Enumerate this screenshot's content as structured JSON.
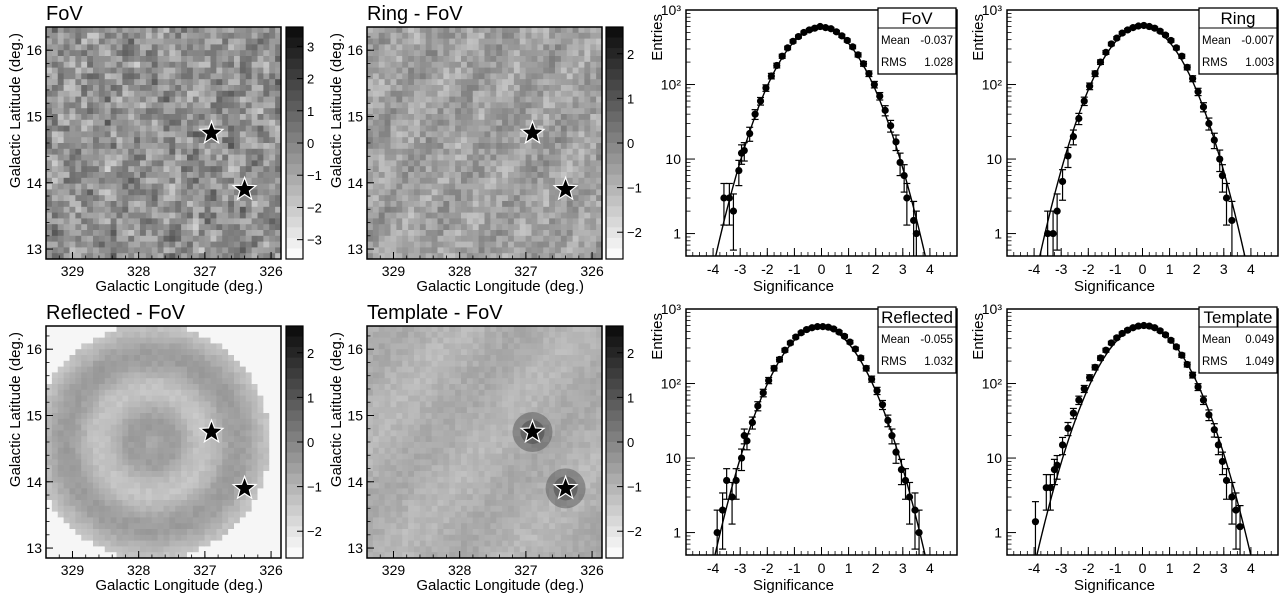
{
  "colors": {
    "marker": "#000000",
    "frame": "#000000",
    "background": "#ffffff",
    "map_light": "#f2f2f2",
    "map_dark": "#3a3a3a"
  },
  "maps": [
    {
      "title": "FoV",
      "xlabel": "Galactic Longitude (deg.)",
      "ylabel": "Galactic Latitude (deg.)",
      "xticks": [
        "329",
        "328",
        "327",
        "326"
      ],
      "yticks": [
        "13",
        "14",
        "15",
        "16"
      ],
      "colorbar_ticks": [
        "3",
        "2",
        "1",
        "0",
        "-1",
        "-2",
        "-3"
      ],
      "colorbar_range": [
        -3.6,
        3.6
      ],
      "pattern": "mottled",
      "stars": [
        {
          "l": 326.9,
          "b": 14.75
        },
        {
          "l": 326.4,
          "b": 13.9
        }
      ]
    },
    {
      "title": "Ring - FoV",
      "xlabel": "Galactic Longitude (deg.)",
      "ylabel": "Galactic Latitude (deg.)",
      "xticks": [
        "329",
        "328",
        "327",
        "326"
      ],
      "yticks": [
        "13",
        "14",
        "15",
        "16"
      ],
      "colorbar_ticks": [
        "2",
        "1",
        "0",
        "-1",
        "-2"
      ],
      "colorbar_range": [
        -2.6,
        2.6
      ],
      "pattern": "fine",
      "stars": [
        {
          "l": 326.9,
          "b": 14.75
        },
        {
          "l": 326.4,
          "b": 13.9
        }
      ]
    },
    {
      "title": "Reflected - FoV",
      "xlabel": "Galactic Longitude (deg.)",
      "ylabel": "Galactic Latitude (deg.)",
      "xticks": [
        "329",
        "328",
        "327",
        "326"
      ],
      "yticks": [
        "13",
        "14",
        "15",
        "16"
      ],
      "colorbar_ticks": [
        "2",
        "1",
        "0",
        "-1",
        "-2"
      ],
      "colorbar_range": [
        -2.6,
        2.6
      ],
      "pattern": "rings",
      "stars": [
        {
          "l": 326.9,
          "b": 14.75
        },
        {
          "l": 326.4,
          "b": 13.9
        }
      ]
    },
    {
      "title": "Template - FoV",
      "xlabel": "Galactic Longitude (deg.)",
      "ylabel": "Galactic Latitude (deg.)",
      "xticks": [
        "329",
        "328",
        "327",
        "326"
      ],
      "yticks": [
        "13",
        "14",
        "15",
        "16"
      ],
      "colorbar_ticks": [
        "2",
        "1",
        "0",
        "-1",
        "-2"
      ],
      "colorbar_range": [
        -2.6,
        2.6
      ],
      "pattern": "smooth",
      "stars": [
        {
          "l": 326.9,
          "b": 14.75
        },
        {
          "l": 326.4,
          "b": 13.9
        }
      ]
    }
  ],
  "chart_data": [
    {
      "type": "scatter",
      "title": "FoV",
      "stats": {
        "mean_label": "Mean",
        "mean": "-0.037",
        "rms_label": "RMS",
        "rms": "1.028"
      },
      "xlabel": "Significance",
      "ylabel": "Entries",
      "xlim": [
        -5,
        5
      ],
      "ylim": [
        0.5,
        1000
      ],
      "yscale": "log",
      "xticks": [
        "-4",
        "-3",
        "-2",
        "-1",
        "0",
        "1",
        "2",
        "3",
        "4"
      ],
      "yticks": [
        "1",
        "10",
        "10²",
        "10³"
      ],
      "fit": {
        "amplitude": 590,
        "mean": -0.037,
        "sigma": 1.028
      },
      "points": [
        {
          "x": -3.6,
          "y": 3,
          "err": 1.7
        },
        {
          "x": -3.4,
          "y": 3,
          "err": 1.7
        },
        {
          "x": -3.25,
          "y": 2,
          "err": 1.4
        },
        {
          "x": -3.05,
          "y": 7,
          "err": 2.6
        },
        {
          "x": -2.95,
          "y": 12,
          "err": 3.5
        },
        {
          "x": -2.85,
          "y": 13,
          "err": 3.6
        },
        {
          "x": -2.65,
          "y": 22,
          "err": 4.7
        },
        {
          "x": -2.45,
          "y": 40,
          "err": 6
        },
        {
          "x": -2.25,
          "y": 60,
          "err": 7
        },
        {
          "x": -2.05,
          "y": 90,
          "err": 9
        },
        {
          "x": -1.85,
          "y": 130,
          "err": 11
        },
        {
          "x": -1.65,
          "y": 180,
          "err": 13
        },
        {
          "x": -1.45,
          "y": 240,
          "err": 15
        },
        {
          "x": -1.25,
          "y": 310,
          "err": 17
        },
        {
          "x": -1.05,
          "y": 380,
          "err": 19
        },
        {
          "x": -0.85,
          "y": 440,
          "err": 21
        },
        {
          "x": -0.65,
          "y": 500,
          "err": 22
        },
        {
          "x": -0.45,
          "y": 540,
          "err": 23
        },
        {
          "x": -0.25,
          "y": 570,
          "err": 23
        },
        {
          "x": -0.05,
          "y": 600,
          "err": 24
        },
        {
          "x": 0.15,
          "y": 580,
          "err": 24
        },
        {
          "x": 0.35,
          "y": 560,
          "err": 23
        },
        {
          "x": 0.55,
          "y": 510,
          "err": 22
        },
        {
          "x": 0.75,
          "y": 450,
          "err": 21
        },
        {
          "x": 0.95,
          "y": 390,
          "err": 19
        },
        {
          "x": 1.15,
          "y": 320,
          "err": 18
        },
        {
          "x": 1.35,
          "y": 250,
          "err": 16
        },
        {
          "x": 1.55,
          "y": 190,
          "err": 14
        },
        {
          "x": 1.75,
          "y": 140,
          "err": 12
        },
        {
          "x": 1.95,
          "y": 100,
          "err": 10
        },
        {
          "x": 2.15,
          "y": 70,
          "err": 8
        },
        {
          "x": 2.35,
          "y": 45,
          "err": 7
        },
        {
          "x": 2.55,
          "y": 28,
          "err": 5
        },
        {
          "x": 2.75,
          "y": 17,
          "err": 4
        },
        {
          "x": 2.9,
          "y": 9,
          "err": 3
        },
        {
          "x": 3.05,
          "y": 6,
          "err": 2.4
        },
        {
          "x": 3.15,
          "y": 3,
          "err": 1.7
        },
        {
          "x": 3.4,
          "y": 1.5,
          "err": 1.2
        },
        {
          "x": 3.5,
          "y": 1,
          "err": 1
        }
      ]
    },
    {
      "type": "scatter",
      "title": "Ring",
      "stats": {
        "mean_label": "Mean",
        "mean": "-0.007",
        "rms_label": "RMS",
        "rms": "1.003"
      },
      "xlabel": "Significance",
      "ylabel": "Entries",
      "xlim": [
        -5,
        5
      ],
      "ylim": [
        0.5,
        1000
      ],
      "yscale": "log",
      "xticks": [
        "-4",
        "-3",
        "-2",
        "-1",
        "0",
        "1",
        "2",
        "3",
        "4"
      ],
      "yticks": [
        "1",
        "10",
        "10²",
        "10³"
      ],
      "fit": {
        "amplitude": 610,
        "mean": -0.007,
        "sigma": 1.003
      },
      "points": [
        {
          "x": -3.5,
          "y": 1,
          "err": 1
        },
        {
          "x": -3.3,
          "y": 1,
          "err": 1
        },
        {
          "x": -3.15,
          "y": 2,
          "err": 1.4
        },
        {
          "x": -2.95,
          "y": 5,
          "err": 2.2
        },
        {
          "x": -2.75,
          "y": 11,
          "err": 3.3
        },
        {
          "x": -2.55,
          "y": 20,
          "err": 4.5
        },
        {
          "x": -2.35,
          "y": 35,
          "err": 6
        },
        {
          "x": -2.15,
          "y": 60,
          "err": 7.7
        },
        {
          "x": -1.95,
          "y": 95,
          "err": 9.7
        },
        {
          "x": -1.75,
          "y": 140,
          "err": 12
        },
        {
          "x": -1.55,
          "y": 200,
          "err": 14
        },
        {
          "x": -1.35,
          "y": 270,
          "err": 16
        },
        {
          "x": -1.15,
          "y": 350,
          "err": 19
        },
        {
          "x": -0.95,
          "y": 420,
          "err": 20
        },
        {
          "x": -0.75,
          "y": 490,
          "err": 22
        },
        {
          "x": -0.55,
          "y": 540,
          "err": 23
        },
        {
          "x": -0.35,
          "y": 580,
          "err": 24
        },
        {
          "x": -0.15,
          "y": 610,
          "err": 25
        },
        {
          "x": 0.05,
          "y": 620,
          "err": 25
        },
        {
          "x": 0.25,
          "y": 600,
          "err": 24
        },
        {
          "x": 0.45,
          "y": 570,
          "err": 24
        },
        {
          "x": 0.65,
          "y": 520,
          "err": 23
        },
        {
          "x": 0.85,
          "y": 460,
          "err": 21
        },
        {
          "x": 1.05,
          "y": 390,
          "err": 20
        },
        {
          "x": 1.25,
          "y": 310,
          "err": 18
        },
        {
          "x": 1.45,
          "y": 240,
          "err": 15
        },
        {
          "x": 1.65,
          "y": 170,
          "err": 13
        },
        {
          "x": 1.85,
          "y": 120,
          "err": 11
        },
        {
          "x": 2.05,
          "y": 80,
          "err": 9
        },
        {
          "x": 2.25,
          "y": 50,
          "err": 7
        },
        {
          "x": 2.45,
          "y": 30,
          "err": 5.5
        },
        {
          "x": 2.65,
          "y": 18,
          "err": 4.2
        },
        {
          "x": 2.85,
          "y": 10,
          "err": 3.2
        },
        {
          "x": 2.95,
          "y": 6,
          "err": 2.4
        },
        {
          "x": 3.1,
          "y": 3,
          "err": 1.7
        },
        {
          "x": 3.3,
          "y": 1.5,
          "err": 1.2
        }
      ]
    },
    {
      "type": "scatter",
      "title": "Reflected",
      "stats": {
        "mean_label": "Mean",
        "mean": "-0.055",
        "rms_label": "RMS",
        "rms": "1.032"
      },
      "xlabel": "Significance",
      "ylabel": "Entries",
      "xlim": [
        -5,
        5
      ],
      "ylim": [
        0.5,
        1000
      ],
      "yscale": "log",
      "xticks": [
        "-4",
        "-3",
        "-2",
        "-1",
        "0",
        "1",
        "2",
        "3",
        "4"
      ],
      "yticks": [
        "1",
        "10",
        "10²",
        "10³"
      ],
      "fit": {
        "amplitude": 580,
        "mean": -0.055,
        "sigma": 1.032
      },
      "points": [
        {
          "x": -3.85,
          "y": 1,
          "err": 1
        },
        {
          "x": -3.65,
          "y": 2,
          "err": 1.4
        },
        {
          "x": -3.5,
          "y": 5,
          "err": 2.2
        },
        {
          "x": -3.3,
          "y": 3,
          "err": 1.7
        },
        {
          "x": -3.15,
          "y": 5,
          "err": 2.2
        },
        {
          "x": -2.95,
          "y": 10,
          "err": 3.2
        },
        {
          "x": -2.85,
          "y": 20,
          "err": 4.5
        },
        {
          "x": -2.75,
          "y": 17,
          "err": 4.1
        },
        {
          "x": -2.55,
          "y": 30,
          "err": 5.5
        },
        {
          "x": -2.35,
          "y": 50,
          "err": 7
        },
        {
          "x": -2.15,
          "y": 75,
          "err": 8.7
        },
        {
          "x": -1.95,
          "y": 110,
          "err": 10.5
        },
        {
          "x": -1.75,
          "y": 160,
          "err": 12.6
        },
        {
          "x": -1.55,
          "y": 210,
          "err": 14.5
        },
        {
          "x": -1.35,
          "y": 280,
          "err": 16.7
        },
        {
          "x": -1.15,
          "y": 350,
          "err": 18.7
        },
        {
          "x": -0.95,
          "y": 420,
          "err": 20.5
        },
        {
          "x": -0.75,
          "y": 480,
          "err": 21.9
        },
        {
          "x": -0.55,
          "y": 530,
          "err": 23
        },
        {
          "x": -0.35,
          "y": 560,
          "err": 23.7
        },
        {
          "x": -0.15,
          "y": 580,
          "err": 24
        },
        {
          "x": 0.05,
          "y": 580,
          "err": 24
        },
        {
          "x": 0.25,
          "y": 570,
          "err": 23.9
        },
        {
          "x": 0.45,
          "y": 540,
          "err": 23.2
        },
        {
          "x": 0.65,
          "y": 490,
          "err": 22.1
        },
        {
          "x": 0.85,
          "y": 430,
          "err": 20.7
        },
        {
          "x": 1.05,
          "y": 360,
          "err": 19
        },
        {
          "x": 1.25,
          "y": 290,
          "err": 17
        },
        {
          "x": 1.45,
          "y": 220,
          "err": 14.8
        },
        {
          "x": 1.65,
          "y": 160,
          "err": 12.6
        },
        {
          "x": 1.85,
          "y": 115,
          "err": 10.7
        },
        {
          "x": 2.05,
          "y": 80,
          "err": 8.9
        },
        {
          "x": 2.25,
          "y": 52,
          "err": 7.2
        },
        {
          "x": 2.45,
          "y": 32,
          "err": 5.7
        },
        {
          "x": 2.6,
          "y": 20,
          "err": 4.5
        },
        {
          "x": 2.75,
          "y": 12,
          "err": 3.5
        },
        {
          "x": 2.95,
          "y": 7,
          "err": 2.6
        },
        {
          "x": 3.1,
          "y": 5,
          "err": 2.2
        },
        {
          "x": 3.25,
          "y": 3,
          "err": 1.7
        },
        {
          "x": 3.45,
          "y": 2,
          "err": 1.4
        },
        {
          "x": 3.6,
          "y": 1,
          "err": 1
        }
      ]
    },
    {
      "type": "scatter",
      "title": "Template",
      "stats": {
        "mean_label": "Mean",
        "mean": "0.049",
        "rms_label": "RMS",
        "rms": "1.049"
      },
      "xlabel": "Significance",
      "ylabel": "Entries",
      "xlim": [
        -5,
        5
      ],
      "ylim": [
        0.5,
        1000
      ],
      "yscale": "log",
      "xticks": [
        "-4",
        "-3",
        "-2",
        "-1",
        "0",
        "1",
        "2",
        "3",
        "4"
      ],
      "yticks": [
        "1",
        "10",
        "10²",
        "10³"
      ],
      "fit": {
        "amplitude": 590,
        "mean": 0.049,
        "sigma": 1.049
      },
      "points": [
        {
          "x": -3.95,
          "y": 1.4,
          "err": 1.2
        },
        {
          "x": -3.55,
          "y": 4,
          "err": 2
        },
        {
          "x": -3.4,
          "y": 4,
          "err": 2
        },
        {
          "x": -3.25,
          "y": 7,
          "err": 2.6
        },
        {
          "x": -3.15,
          "y": 8,
          "err": 2.8
        },
        {
          "x": -2.95,
          "y": 15,
          "err": 3.9
        },
        {
          "x": -2.75,
          "y": 25,
          "err": 5
        },
        {
          "x": -2.55,
          "y": 40,
          "err": 6.3
        },
        {
          "x": -2.35,
          "y": 60,
          "err": 7.7
        },
        {
          "x": -2.15,
          "y": 85,
          "err": 9.2
        },
        {
          "x": -1.95,
          "y": 120,
          "err": 11
        },
        {
          "x": -1.75,
          "y": 165,
          "err": 12.8
        },
        {
          "x": -1.55,
          "y": 220,
          "err": 14.8
        },
        {
          "x": -1.35,
          "y": 280,
          "err": 16.7
        },
        {
          "x": -1.15,
          "y": 350,
          "err": 18.7
        },
        {
          "x": -0.95,
          "y": 410,
          "err": 20.2
        },
        {
          "x": -0.75,
          "y": 470,
          "err": 21.7
        },
        {
          "x": -0.55,
          "y": 520,
          "err": 22.8
        },
        {
          "x": -0.35,
          "y": 560,
          "err": 23.7
        },
        {
          "x": -0.15,
          "y": 590,
          "err": 24.3
        },
        {
          "x": 0.05,
          "y": 600,
          "err": 24.5
        },
        {
          "x": 0.25,
          "y": 590,
          "err": 24.3
        },
        {
          "x": 0.45,
          "y": 560,
          "err": 23.7
        },
        {
          "x": 0.65,
          "y": 510,
          "err": 22.6
        },
        {
          "x": 0.85,
          "y": 450,
          "err": 21.2
        },
        {
          "x": 1.05,
          "y": 380,
          "err": 19.5
        },
        {
          "x": 1.25,
          "y": 310,
          "err": 17.6
        },
        {
          "x": 1.45,
          "y": 240,
          "err": 15.5
        },
        {
          "x": 1.65,
          "y": 180,
          "err": 13.4
        },
        {
          "x": 1.85,
          "y": 130,
          "err": 11.4
        },
        {
          "x": 2.05,
          "y": 90,
          "err": 9.5
        },
        {
          "x": 2.25,
          "y": 60,
          "err": 7.7
        },
        {
          "x": 2.45,
          "y": 38,
          "err": 6.2
        },
        {
          "x": 2.65,
          "y": 24,
          "err": 4.9
        },
        {
          "x": 2.8,
          "y": 15,
          "err": 3.9
        },
        {
          "x": 2.95,
          "y": 9,
          "err": 3
        },
        {
          "x": 3.1,
          "y": 5,
          "err": 2.2
        },
        {
          "x": 3.3,
          "y": 3,
          "err": 1.7
        },
        {
          "x": 3.45,
          "y": 2,
          "err": 1.4
        },
        {
          "x": 3.6,
          "y": 1.2,
          "err": 1.1
        }
      ]
    }
  ]
}
